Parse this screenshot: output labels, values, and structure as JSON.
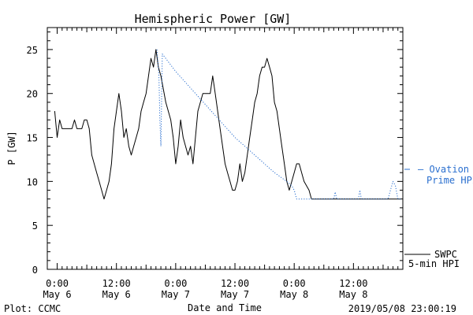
{
  "chart_data": {
    "type": "line",
    "title": "Hemispheric Power [GW]",
    "ylabel": "P [GW]",
    "xlabel": "Date and Time",
    "ylim": [
      0,
      27.5
    ],
    "xlim_hours": [
      -2,
      70
    ],
    "y_ticks": [
      0,
      5,
      10,
      15,
      20,
      25
    ],
    "x_ticks": [
      {
        "hour": 0,
        "time": "0:00",
        "date": "May 6"
      },
      {
        "hour": 12,
        "time": "12:00",
        "date": "May 6"
      },
      {
        "hour": 24,
        "time": "0:00",
        "date": "May 7"
      },
      {
        "hour": 36,
        "time": "12:00",
        "date": "May 7"
      },
      {
        "hour": 48,
        "time": "0:00",
        "date": "May 8"
      },
      {
        "hour": 60,
        "time": "12:00",
        "date": "May 8"
      }
    ],
    "series": [
      {
        "name": "SWPC 5-min HPI",
        "color": "#000000",
        "style": "solid",
        "points": [
          [
            -0.5,
            18
          ],
          [
            0,
            15
          ],
          [
            0.5,
            17
          ],
          [
            1,
            16
          ],
          [
            2,
            16
          ],
          [
            3,
            16
          ],
          [
            3.5,
            17
          ],
          [
            4,
            16
          ],
          [
            5,
            16
          ],
          [
            5.5,
            17
          ],
          [
            6,
            17
          ],
          [
            6.5,
            16
          ],
          [
            7,
            13
          ],
          [
            8,
            11
          ],
          [
            8.5,
            10
          ],
          [
            9,
            9
          ],
          [
            9.5,
            8
          ],
          [
            10,
            9
          ],
          [
            10.5,
            10
          ],
          [
            11,
            12
          ],
          [
            11.5,
            16
          ],
          [
            12,
            18
          ],
          [
            12.5,
            20
          ],
          [
            13,
            18
          ],
          [
            13.5,
            15
          ],
          [
            14,
            16
          ],
          [
            14.5,
            14
          ],
          [
            15,
            13
          ],
          [
            15.5,
            14
          ],
          [
            16,
            15
          ],
          [
            16.5,
            16
          ],
          [
            17,
            18
          ],
          [
            17.5,
            19
          ],
          [
            18,
            20
          ],
          [
            18.5,
            22
          ],
          [
            19,
            24
          ],
          [
            19.5,
            23
          ],
          [
            20,
            25
          ],
          [
            20.5,
            23
          ],
          [
            21,
            22
          ],
          [
            22,
            19
          ],
          [
            23,
            17
          ],
          [
            23.5,
            15
          ],
          [
            24,
            12
          ],
          [
            24.5,
            14
          ],
          [
            25,
            17
          ],
          [
            25.5,
            15
          ],
          [
            26,
            14
          ],
          [
            26.5,
            13
          ],
          [
            27,
            14
          ],
          [
            27.5,
            12
          ],
          [
            28,
            15
          ],
          [
            28.5,
            18
          ],
          [
            29,
            19
          ],
          [
            29.5,
            20
          ],
          [
            30,
            20
          ],
          [
            31,
            20
          ],
          [
            31.5,
            22
          ],
          [
            32,
            20
          ],
          [
            33,
            16
          ],
          [
            34,
            12
          ],
          [
            34.5,
            11
          ],
          [
            35,
            10
          ],
          [
            35.5,
            9
          ],
          [
            36,
            9
          ],
          [
            36.5,
            10
          ],
          [
            37,
            12
          ],
          [
            37.5,
            10
          ],
          [
            38,
            11
          ],
          [
            38.5,
            13
          ],
          [
            39,
            15
          ],
          [
            39.5,
            17
          ],
          [
            40,
            19
          ],
          [
            40.5,
            20
          ],
          [
            41,
            22
          ],
          [
            41.5,
            23
          ],
          [
            42,
            23
          ],
          [
            42.5,
            24
          ],
          [
            43,
            23
          ],
          [
            43.5,
            22
          ],
          [
            44,
            19
          ],
          [
            44.5,
            18
          ],
          [
            45,
            16
          ],
          [
            45.5,
            14
          ],
          [
            46,
            12
          ],
          [
            46.5,
            10
          ],
          [
            47,
            9
          ],
          [
            47.5,
            10
          ],
          [
            48,
            11
          ],
          [
            48.5,
            12
          ],
          [
            49,
            12
          ],
          [
            49.5,
            11
          ],
          [
            50,
            10
          ],
          [
            51,
            9
          ],
          [
            51.5,
            8
          ],
          [
            53,
            8
          ],
          [
            58,
            8
          ],
          [
            63,
            8
          ],
          [
            68,
            8
          ],
          [
            69.5,
            8
          ]
        ]
      },
      {
        "name": "Ovation Prime HPI",
        "color": "#2a6fcf",
        "style": "dotted",
        "points": [
          [
            20.2,
            25
          ],
          [
            20.6,
            22
          ],
          [
            20.8,
            17
          ],
          [
            21,
            14
          ],
          [
            21.3,
            24.5
          ],
          [
            24,
            22.5
          ],
          [
            28,
            20
          ],
          [
            32,
            17.5
          ],
          [
            36,
            15
          ],
          [
            40,
            13
          ],
          [
            44,
            11
          ],
          [
            46.5,
            10
          ],
          [
            47.5,
            9.5
          ],
          [
            48,
            9
          ],
          [
            48.5,
            8
          ],
          [
            51,
            8
          ],
          [
            56,
            8
          ],
          [
            56.3,
            8.8
          ],
          [
            56.6,
            8
          ],
          [
            61,
            8
          ],
          [
            61.3,
            9
          ],
          [
            61.6,
            8
          ],
          [
            67,
            8
          ],
          [
            67.5,
            9
          ],
          [
            68,
            10
          ],
          [
            68.5,
            9.5
          ],
          [
            69,
            8
          ],
          [
            69.5,
            8
          ]
        ]
      }
    ],
    "legend": {
      "placement": "right",
      "entries": [
        {
          "label_lines": [
            "— Ovation",
            "Prime HPI"
          ],
          "color": "#2a6fcf"
        },
        {
          "label_lines": [
            "SWPC",
            "5-min HPI"
          ],
          "color": "#000000"
        }
      ]
    },
    "footer": {
      "left": "Plot: CCMC",
      "right": "2019/05/08 23:00:19"
    }
  }
}
